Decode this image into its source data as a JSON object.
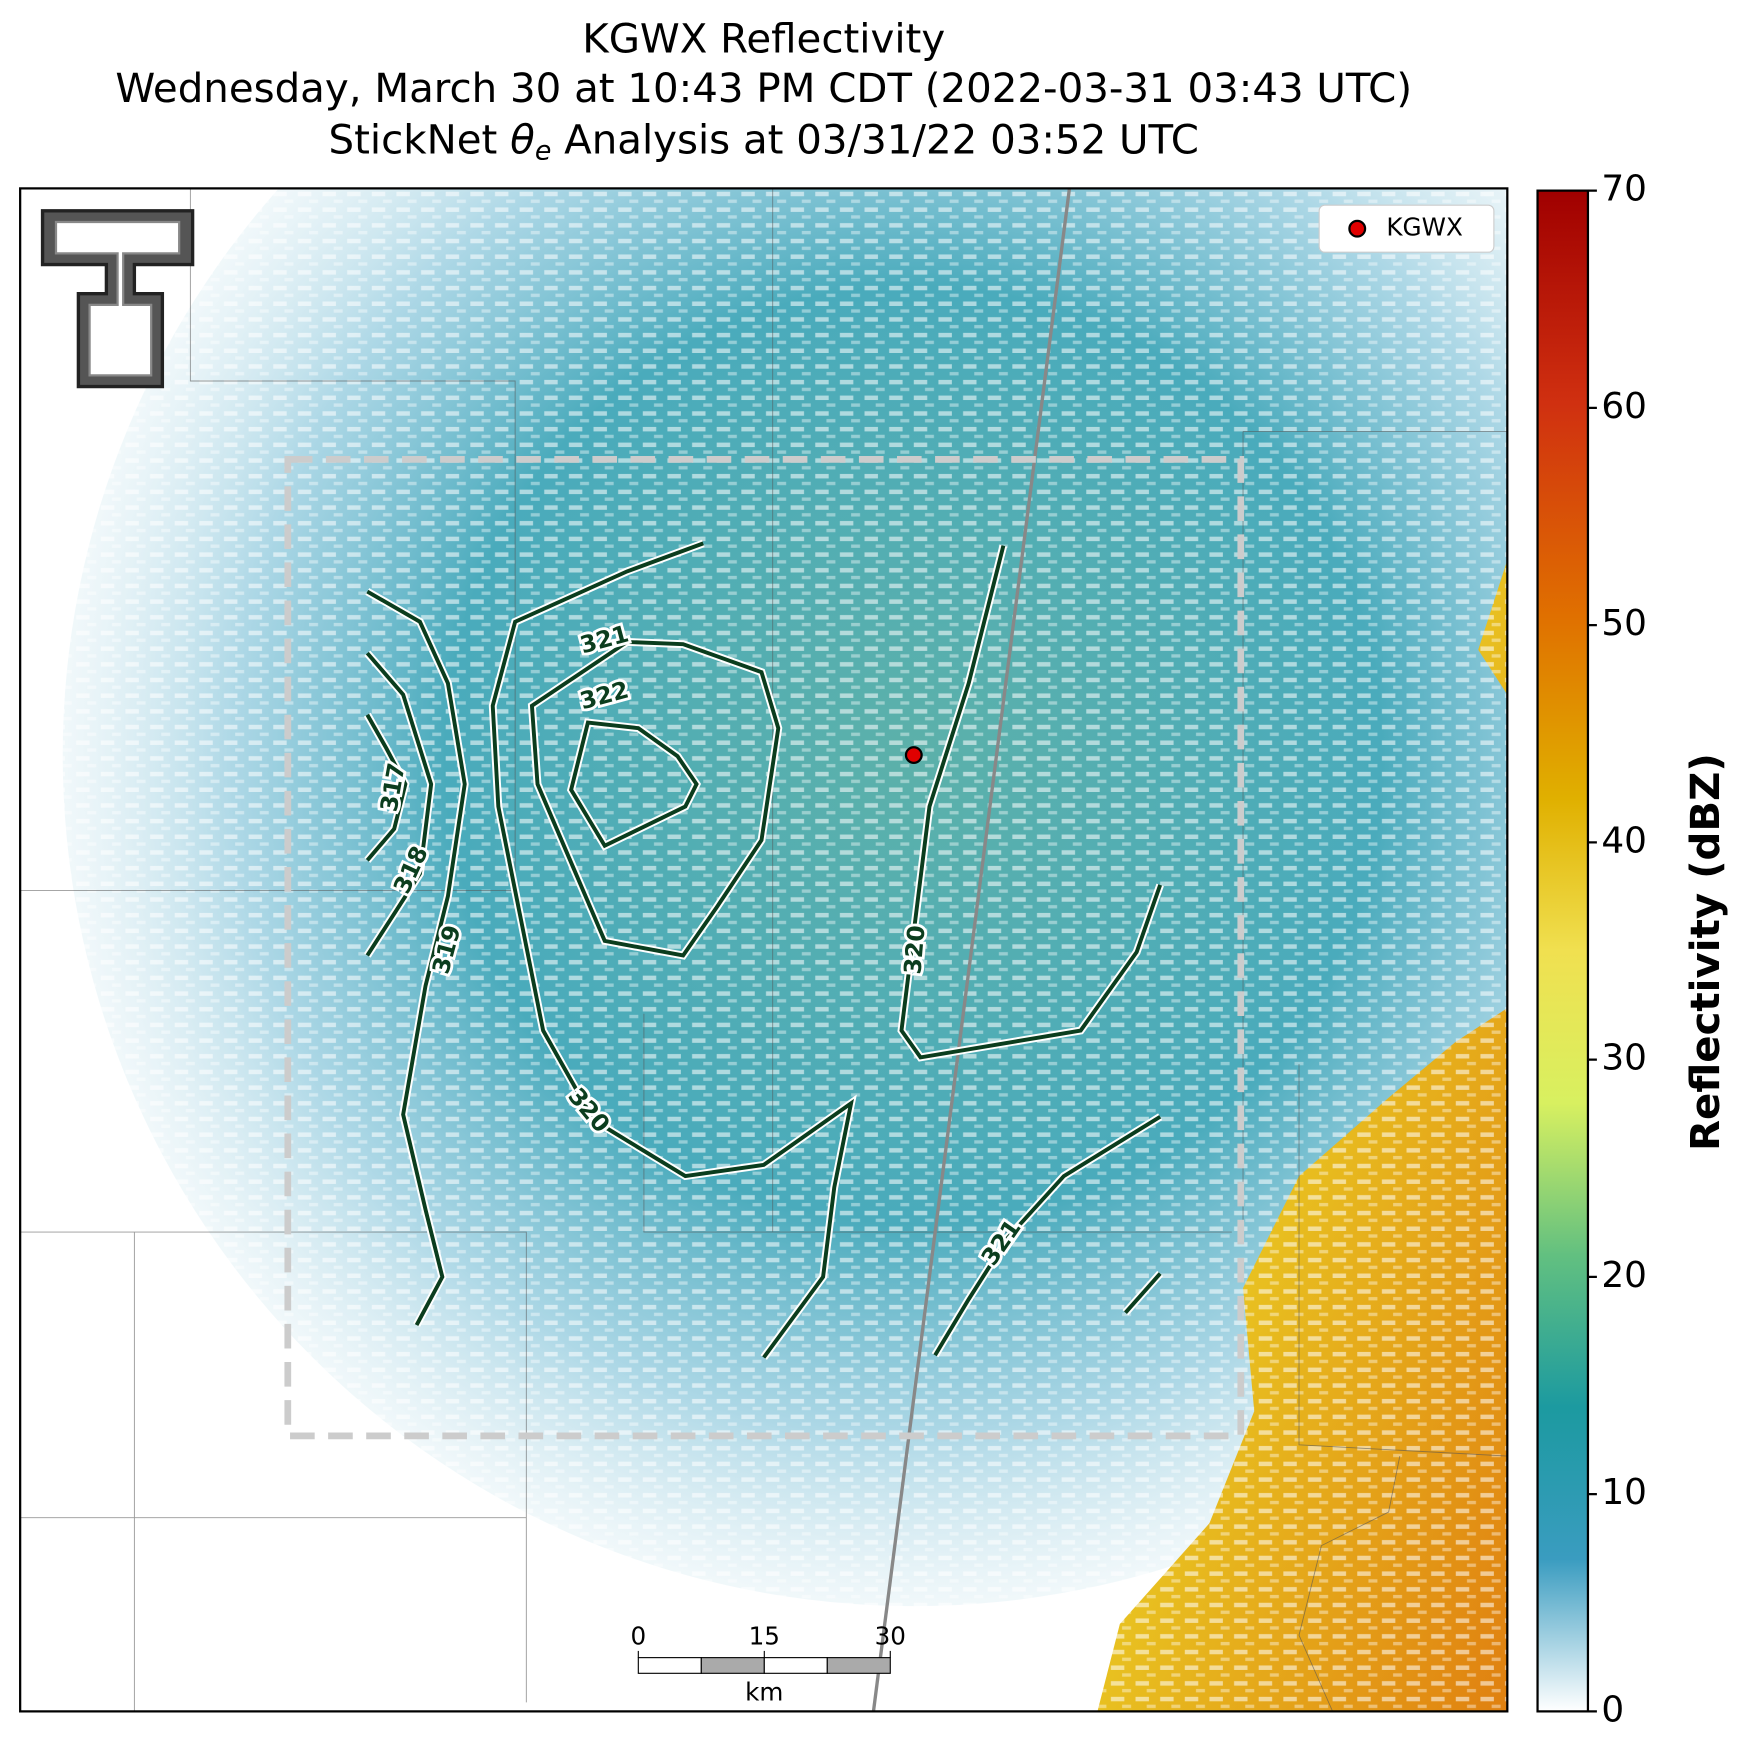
{
  "title": {
    "line1": "KGWX Reflectivity",
    "line2": "Wednesday, March 30 at 10:43 PM CDT (2022-03-31 03:43 UTC)",
    "line3": {
      "before": "StickNet ",
      "symbol": "θ",
      "subscript": "e",
      "after": " Analysis at 03/31/22 03:52 UTC"
    }
  },
  "legend": {
    "label": "KGWX"
  },
  "colorbar": {
    "label": "Reflectivity (dBZ)",
    "lim": [
      0,
      70
    ],
    "ticks": [
      0,
      10,
      20,
      30,
      40,
      50,
      60,
      70
    ]
  },
  "contour_labels": [
    317,
    318,
    319,
    320,
    320,
    321,
    322,
    321
  ],
  "scale_bar": {
    "ticks": [
      0,
      15,
      30
    ],
    "unit": "km"
  }
}
